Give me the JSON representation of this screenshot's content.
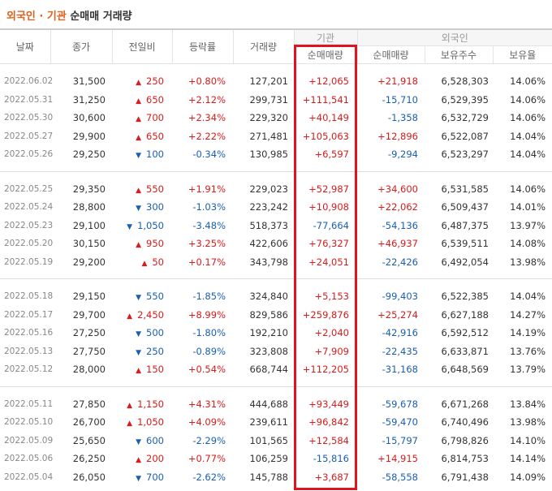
{
  "header": {
    "accent": "외국인 · 기관",
    "title": "순매매 거래량"
  },
  "table": {
    "columns": [
      "날짜",
      "종가",
      "전일비",
      "등락률",
      "거래량"
    ],
    "groups": [
      {
        "label": "기관",
        "columns": [
          "순매매량"
        ]
      },
      {
        "label": "외국인",
        "columns": [
          "순매매량",
          "보유주수",
          "보유율"
        ]
      }
    ],
    "sections": [
      [
        [
          "2022.06.02",
          "31,500",
          "250",
          "+0.80%",
          "127,201",
          "+12,065",
          "+21,918",
          "6,528,303",
          "14.06%"
        ],
        [
          "2022.05.31",
          "31,250",
          "650",
          "+2.12%",
          "299,731",
          "+111,541",
          "-15,710",
          "6,529,395",
          "14.06%"
        ],
        [
          "2022.05.30",
          "30,600",
          "700",
          "+2.34%",
          "229,320",
          "+40,149",
          "-1,358",
          "6,532,729",
          "14.06%"
        ],
        [
          "2022.05.27",
          "29,900",
          "650",
          "+2.22%",
          "271,481",
          "+105,063",
          "+12,896",
          "6,522,087",
          "14.04%"
        ],
        [
          "2022.05.26",
          "29,250",
          "100",
          "-0.34%",
          "130,985",
          "+6,597",
          "-9,294",
          "6,523,297",
          "14.04%"
        ]
      ],
      [
        [
          "2022.05.25",
          "29,350",
          "550",
          "+1.91%",
          "229,023",
          "+52,987",
          "+34,600",
          "6,531,585",
          "14.06%"
        ],
        [
          "2022.05.24",
          "28,800",
          "300",
          "-1.03%",
          "223,242",
          "+10,908",
          "+22,062",
          "6,509,437",
          "14.01%"
        ],
        [
          "2022.05.23",
          "29,100",
          "1,050",
          "-3.48%",
          "518,373",
          "-77,664",
          "-54,136",
          "6,487,375",
          "13.97%"
        ],
        [
          "2022.05.20",
          "30,150",
          "950",
          "+3.25%",
          "422,606",
          "+76,327",
          "+46,937",
          "6,539,511",
          "14.08%"
        ],
        [
          "2022.05.19",
          "29,200",
          "50",
          "+0.17%",
          "343,798",
          "+24,051",
          "-22,426",
          "6,492,054",
          "13.98%"
        ]
      ],
      [
        [
          "2022.05.18",
          "29,150",
          "550",
          "-1.85%",
          "324,840",
          "+5,153",
          "-99,403",
          "6,522,385",
          "14.04%"
        ],
        [
          "2022.05.17",
          "29,700",
          "2,450",
          "+8.99%",
          "829,586",
          "+259,876",
          "+25,274",
          "6,627,188",
          "14.27%"
        ],
        [
          "2022.05.16",
          "27,250",
          "500",
          "-1.80%",
          "192,210",
          "+2,040",
          "-42,916",
          "6,592,512",
          "14.19%"
        ],
        [
          "2022.05.13",
          "27,750",
          "250",
          "-0.89%",
          "323,808",
          "+7,909",
          "-22,435",
          "6,633,871",
          "13.76%"
        ],
        [
          "2022.05.12",
          "28,000",
          "150",
          "+0.54%",
          "668,744",
          "+112,205",
          "-31,168",
          "6,648,569",
          "13.79%"
        ]
      ],
      [
        [
          "2022.05.11",
          "27,850",
          "1,150",
          "+4.31%",
          "444,688",
          "+93,449",
          "-59,678",
          "6,671,268",
          "13.84%"
        ],
        [
          "2022.05.10",
          "26,700",
          "1,050",
          "+4.09%",
          "239,611",
          "+96,842",
          "-59,470",
          "6,740,496",
          "13.98%"
        ],
        [
          "2022.05.09",
          "25,650",
          "600",
          "-2.29%",
          "101,565",
          "+12,584",
          "-15,797",
          "6,798,826",
          "14.10%"
        ],
        [
          "2022.05.06",
          "26,250",
          "200",
          "+0.77%",
          "106,259",
          "-15,816",
          "+14,915",
          "6,814,753",
          "14.14%"
        ],
        [
          "2022.05.04",
          "26,050",
          "700",
          "-2.62%",
          "145,788",
          "+3,687",
          "-58,558",
          "6,791,438",
          "14.09%"
        ]
      ]
    ]
  }
}
